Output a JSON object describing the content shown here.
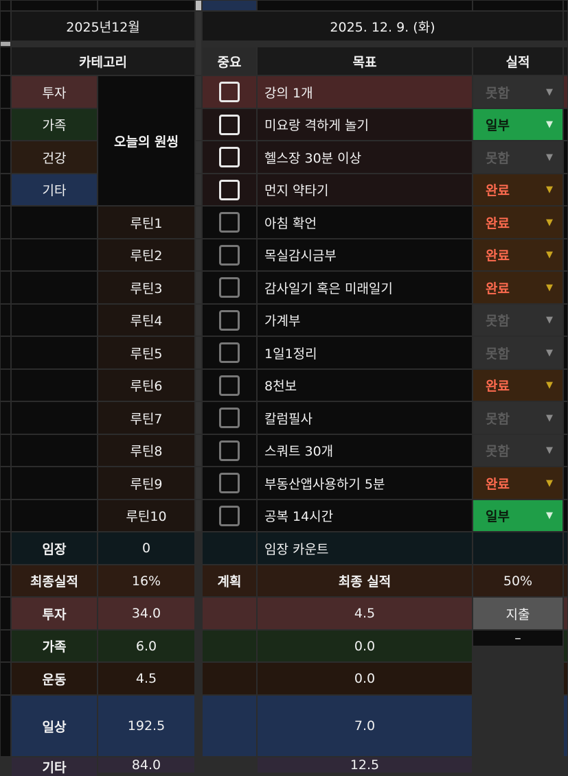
{
  "header": {
    "month": "2025년12월",
    "date": "2025. 12. 9. (화)"
  },
  "columns": {
    "category": "카테고리",
    "important": "중요",
    "goal": "목표",
    "result": "실적"
  },
  "categories": [
    {
      "label": "투자",
      "color": "#4a2a2a"
    },
    {
      "label": "가족",
      "color": "#1a2e1a"
    },
    {
      "label": "건강",
      "color": "#2a1c12"
    },
    {
      "label": "기타",
      "color": "#1f3152"
    }
  ],
  "one_thing_label": "오늘의 원씽",
  "tasks": [
    {
      "routine": "",
      "goal": "강의 1개",
      "checked": false,
      "status": "못함"
    },
    {
      "routine": "",
      "goal": "미요랑 격하게 놀기",
      "checked": false,
      "status": "일부"
    },
    {
      "routine": "",
      "goal": "헬스장 30분 이상",
      "checked": false,
      "status": "못함"
    },
    {
      "routine": "",
      "goal": "먼지 약타기",
      "checked": false,
      "status": "완료"
    },
    {
      "routine": "루틴1",
      "goal": "아침 확언",
      "checked": false,
      "status": "완료"
    },
    {
      "routine": "루틴2",
      "goal": "목실감시금부",
      "checked": false,
      "status": "완료"
    },
    {
      "routine": "루틴3",
      "goal": "감사일기 혹은 미래일기",
      "checked": false,
      "status": "완료"
    },
    {
      "routine": "루틴4",
      "goal": "가계부",
      "checked": false,
      "status": "못함"
    },
    {
      "routine": "루틴5",
      "goal": "1일1정리",
      "checked": false,
      "status": "못함"
    },
    {
      "routine": "루틴6",
      "goal": "8천보",
      "checked": false,
      "status": "완료"
    },
    {
      "routine": "루틴7",
      "goal": "칼럼필사",
      "checked": false,
      "status": "못함"
    },
    {
      "routine": "루틴8",
      "goal": "스쿼트 30개",
      "checked": false,
      "status": "못함"
    },
    {
      "routine": "루틴9",
      "goal": "부동산앱사용하기 5분",
      "checked": false,
      "status": "완료"
    },
    {
      "routine": "루틴10",
      "goal": "공복 14시간",
      "checked": false,
      "status": "일부"
    }
  ],
  "status_styles": {
    "못함": {
      "bg": "#2f2f2f",
      "fg": "#5c5c5c",
      "arrow": "#8a8a8a"
    },
    "일부": {
      "bg": "#1f9e48",
      "fg": "#0b1a0d",
      "arrow": "#d8f0dc"
    },
    "완료": {
      "bg": "#3a2410",
      "fg": "#ff6b4f",
      "arrow": "#c9a41f"
    }
  },
  "imjang": {
    "label": "임장",
    "value": "0",
    "count_label": "임장 카운트"
  },
  "final": {
    "label": "최종실적",
    "value": "16%",
    "plan_label": "계획",
    "result_label": "최종 실적",
    "result_value": "50%"
  },
  "summary": [
    {
      "label": "투자",
      "plan": "34.0",
      "actual": "4.5",
      "color": "#4a2a2a"
    },
    {
      "label": "가족",
      "plan": "6.0",
      "actual": "0.0",
      "color": "#1a2a18"
    },
    {
      "label": "운동",
      "plan": "4.5",
      "actual": "0.0",
      "color": "#25170e"
    },
    {
      "label": "일상",
      "plan": "192.5",
      "actual": "7.0",
      "color": "#1f3152"
    },
    {
      "label": "기타",
      "plan": "84.0",
      "actual": "12.5",
      "color": "#302838"
    }
  ],
  "expense": {
    "label": "지출",
    "value": "–"
  }
}
